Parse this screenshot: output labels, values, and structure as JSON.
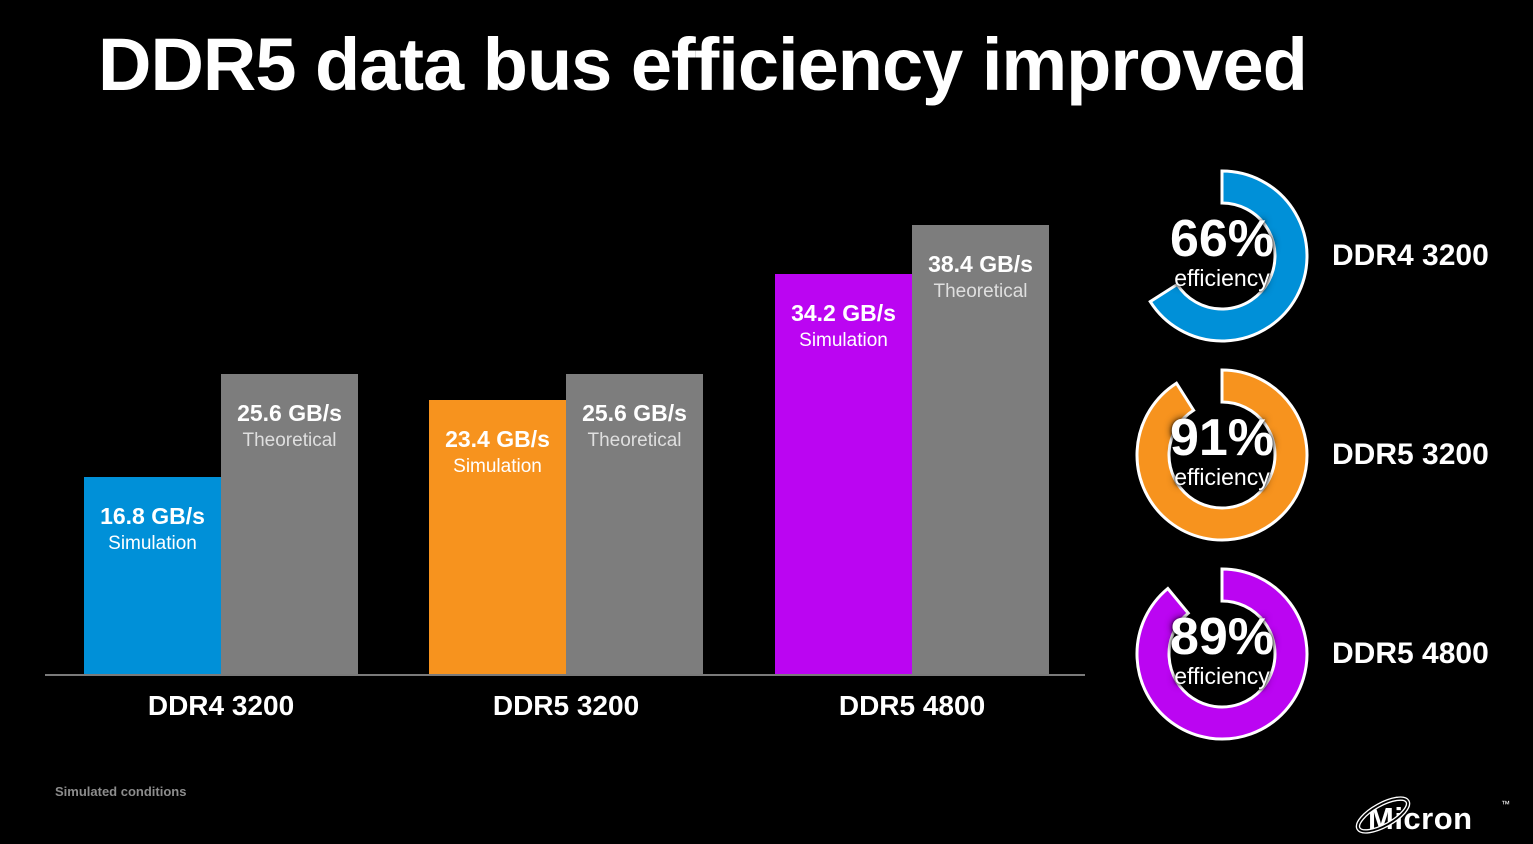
{
  "slide": {
    "title": "DDR5 data bus efficiency improved",
    "footnote": "Simulated conditions",
    "logo": {
      "brand": "Micron",
      "trademark": "™"
    }
  },
  "colors": {
    "background": "#000000",
    "blue": "#0090D8",
    "orange": "#F7931E",
    "magenta": "#BB05F2",
    "gray": "#7D7D7D",
    "axis_line": "#7A7A7A",
    "text_primary": "#FFFFFF",
    "text_secondary": "#DFDFDF",
    "footnote_text": "#8C8C8C"
  },
  "chart_data": [
    {
      "type": "bar",
      "title": "",
      "categories": [
        "DDR4 3200",
        "DDR5 3200",
        "DDR5 4800"
      ],
      "unit": "GB/s",
      "ylim": [
        0,
        40
      ],
      "grid": false,
      "legend": "labels-on-bars",
      "series": [
        {
          "name": "Simulation",
          "values": [
            16.8,
            23.4,
            34.2
          ],
          "colors": [
            "#0090D8",
            "#F7931E",
            "#BB05F2"
          ]
        },
        {
          "name": "Theoretical",
          "values": [
            25.6,
            25.6,
            38.4
          ],
          "colors": [
            "#7D7D7D",
            "#7D7D7D",
            "#7D7D7D"
          ]
        }
      ]
    },
    {
      "type": "pie",
      "variant": "donut-gauge",
      "center_subtext": "efficiency",
      "items": [
        {
          "label": "DDR4 3200",
          "percent": 66,
          "color": "#0090D8"
        },
        {
          "label": "DDR5 3200",
          "percent": 91,
          "color": "#F7931E"
        },
        {
          "label": "DDR5 4800",
          "percent": 89,
          "color": "#BB05F2"
        }
      ]
    }
  ]
}
